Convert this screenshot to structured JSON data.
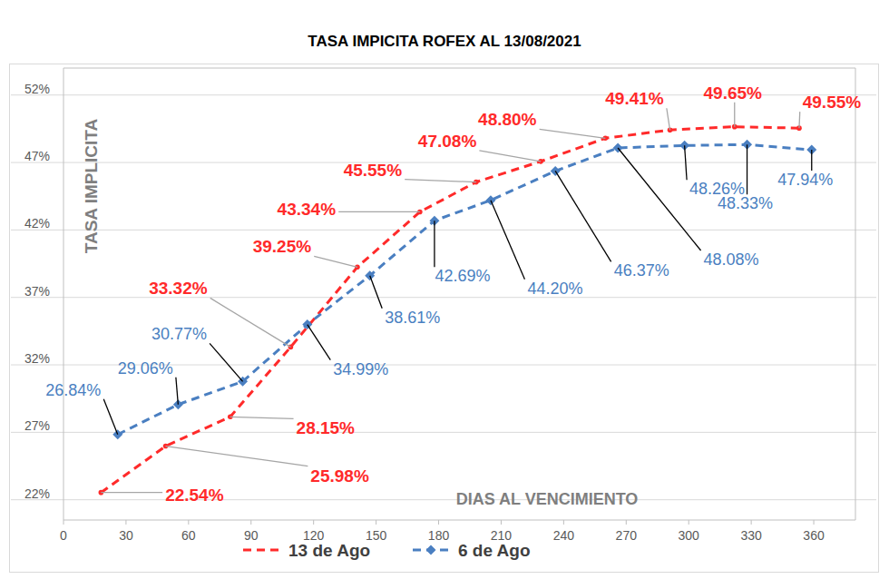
{
  "chart_data": {
    "type": "line",
    "title": "TASA IMPICITA ROFEX AL 13/08/2021",
    "y_label": "TASA IMPLICITA",
    "x_label": "DIAS AL VENCIMIENTO",
    "xlim": [
      0,
      380
    ],
    "xticks": [
      0,
      30,
      60,
      90,
      120,
      150,
      180,
      210,
      240,
      270,
      300,
      330,
      360
    ],
    "ylim": [
      20.5,
      54
    ],
    "yticks": [
      {
        "value": 22,
        "label": "22%"
      },
      {
        "value": 27,
        "label": "27%"
      },
      {
        "value": 32,
        "label": "32%"
      },
      {
        "value": 37,
        "label": "37%"
      },
      {
        "value": 42,
        "label": "42%"
      },
      {
        "value": 47,
        "label": "47%"
      },
      {
        "value": 52,
        "label": "52%"
      }
    ],
    "grid": true,
    "legend": "bottom",
    "data_labels": true,
    "series": [
      {
        "name": "13 de Ago",
        "color": "#ff2a2a",
        "marker": "circle",
        "line_style": "dashed",
        "x": [
          18,
          49,
          80,
          109,
          141,
          171,
          198,
          229,
          260,
          291,
          322,
          353
        ],
        "values": [
          22.54,
          25.98,
          28.15,
          33.32,
          39.25,
          43.34,
          45.55,
          47.08,
          48.8,
          49.41,
          49.65,
          49.55
        ],
        "value_labels": [
          "22.54%",
          "25.98%",
          "28.15%",
          "33.32%",
          "39.25%",
          "43.34%",
          "45.55%",
          "47.08%",
          "48.80%",
          "49.41%",
          "49.65%",
          "49.55%"
        ]
      },
      {
        "name": "6 de Ago",
        "color": "#4a7fc1",
        "marker": "diamond",
        "line_style": "dashed",
        "x": [
          26,
          55,
          86,
          117,
          147,
          178,
          205,
          236,
          266,
          298,
          328,
          359
        ],
        "values": [
          26.84,
          29.06,
          30.77,
          34.99,
          38.61,
          42.69,
          44.2,
          46.37,
          48.08,
          48.26,
          48.33,
          47.94
        ],
        "value_labels": [
          "26.84%",
          "29.06%",
          "30.77%",
          "34.99%",
          "38.61%",
          "42.69%",
          "44.20%",
          "46.37%",
          "48.08%",
          "48.26%",
          "48.33%",
          "47.94%"
        ]
      }
    ]
  }
}
